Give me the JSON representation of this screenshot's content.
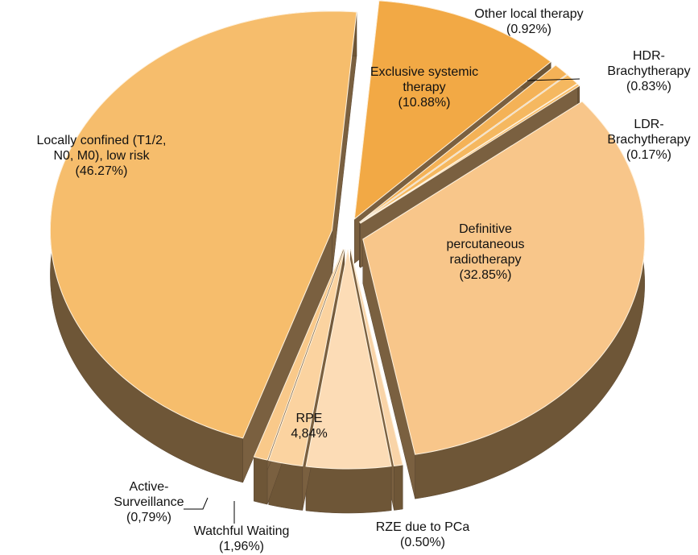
{
  "chart_data": {
    "type": "pie",
    "categories": [
      "Exclusive systemic therapy",
      "Other local therapy",
      "HDR-Brachytherapy",
      "LDR-Brachytherapy",
      "Definitive percutaneous radiotherapy",
      "RZE due to PCa",
      "RPE",
      "Watchful Waiting",
      "Active-Surveillance",
      "Locally confined (T1/2, N0, M0), low risk"
    ],
    "values": [
      10.88,
      0.92,
      0.83,
      0.17,
      32.85,
      0.5,
      4.84,
      1.96,
      0.79,
      46.27
    ],
    "value_labels": [
      "(10.88%)",
      "(0.92%)",
      "(0.83%)",
      "(0.17%)",
      "(32.85%)",
      "(0.50%)",
      "4,84%",
      "(1,96%)",
      "(0,79%)",
      "(46.27%)"
    ],
    "colors": [
      "#f2a945",
      "#f4b257",
      "#f5b860",
      "#f6bc68",
      "#f8c68a",
      "#f9d4a8",
      "#fcdcb6",
      "#fbd3a0",
      "#f9c98a",
      "#f6bd6c"
    ]
  }
}
